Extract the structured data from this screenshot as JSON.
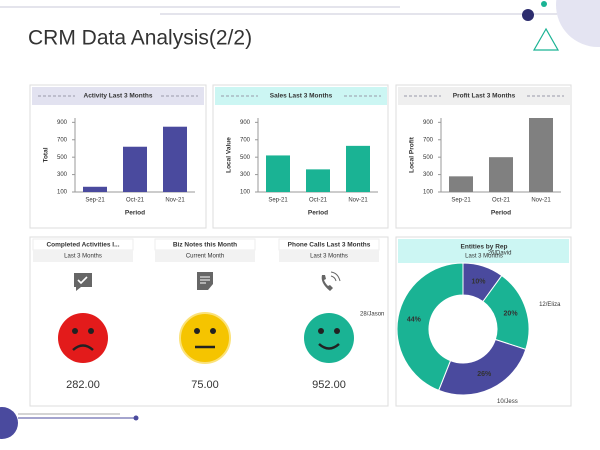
{
  "title": "CRM Data Analysis(2/2)",
  "chart_data": [
    {
      "type": "bar",
      "title": "Activity  Last 3 Months",
      "ylabel": "Total",
      "xlabel": "Period",
      "categories": [
        "Sep-21",
        "Oct-21",
        "Nov-21"
      ],
      "values": [
        160,
        620,
        850
      ],
      "color": "#4a4a9e",
      "header_color": "#e2e2f0",
      "ylim": [
        100,
        950
      ],
      "yticks": [
        100,
        300,
        500,
        700,
        900
      ]
    },
    {
      "type": "bar",
      "title": "Sales Last 3 Months",
      "ylabel": "Local Value",
      "xlabel": "Period",
      "categories": [
        "Sep-21",
        "Oct-21",
        "Nov-21"
      ],
      "values": [
        520,
        360,
        630
      ],
      "color": "#1ab394",
      "header_color": "#ccf6f3",
      "ylim": [
        100,
        950
      ],
      "yticks": [
        100,
        300,
        500,
        700,
        900
      ]
    },
    {
      "type": "bar",
      "title": "Profit Last 3 Months",
      "ylabel": "Local Profit",
      "xlabel": "Period",
      "categories": [
        "Sep-21",
        "Oct-21",
        "Nov-21"
      ],
      "values": [
        280,
        500,
        950
      ],
      "color": "#808080",
      "header_color": "#efefef",
      "ylim": [
        100,
        950
      ],
      "yticks": [
        100,
        300,
        500,
        700,
        900
      ]
    },
    {
      "type": "pie",
      "title": "Entities  by Rep",
      "subtitle": "Last 3 Months",
      "header_color": "#ccf6f3",
      "categories": [
        "26/David",
        "12/Eliza",
        "10/Jess",
        "28/Jason"
      ],
      "values": [
        10,
        20,
        26,
        44
      ],
      "value_labels": [
        "10%",
        "20%",
        "26%",
        "44%"
      ],
      "colors": [
        "#4a4a9e",
        "#1ab394",
        "#4a4a9e",
        "#1ab394"
      ]
    }
  ],
  "kpis": [
    {
      "title": "Completed Activities I...",
      "subtitle": "Last 3 Months",
      "value": "282.00"
    },
    {
      "title": "Biz Notes this Month",
      "subtitle": "Current Month",
      "value": "75.00"
    },
    {
      "title": "Phone Calls Last 3 Months",
      "subtitle": "Last 3 Months",
      "value": "952.00"
    }
  ]
}
